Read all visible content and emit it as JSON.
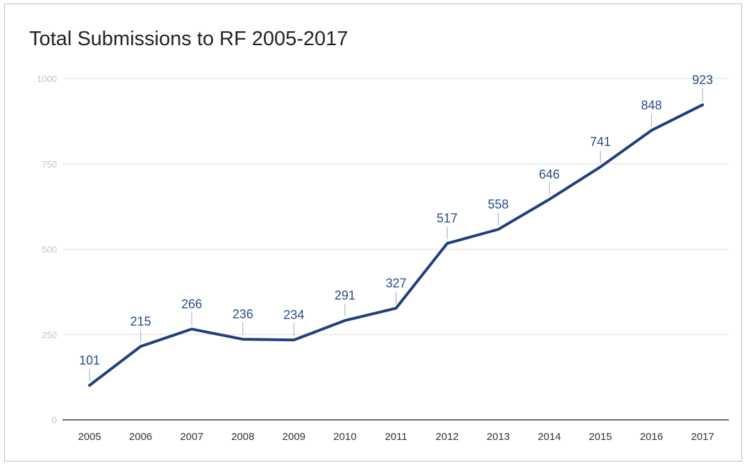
{
  "chart_data": {
    "type": "line",
    "title": "Total Submissions to RF 2005-2017",
    "xlabel": "",
    "ylabel": "",
    "categories": [
      "2005",
      "2006",
      "2007",
      "2008",
      "2009",
      "2010",
      "2011",
      "2012",
      "2013",
      "2014",
      "2015",
      "2016",
      "2017"
    ],
    "series": [
      {
        "values": [
          101,
          215,
          266,
          236,
          234,
          291,
          327,
          517,
          558,
          646,
          741,
          848,
          923
        ]
      }
    ],
    "ylim": [
      0,
      1000
    ],
    "yticks": [
      0,
      250,
      500,
      750,
      1000
    ],
    "grid": true,
    "data_labels": true,
    "colors": {
      "line": "#1f3f7f",
      "label": "#2b4b8c",
      "grid": "#dcdcdc",
      "ytick": "#c2c2c2"
    }
  }
}
